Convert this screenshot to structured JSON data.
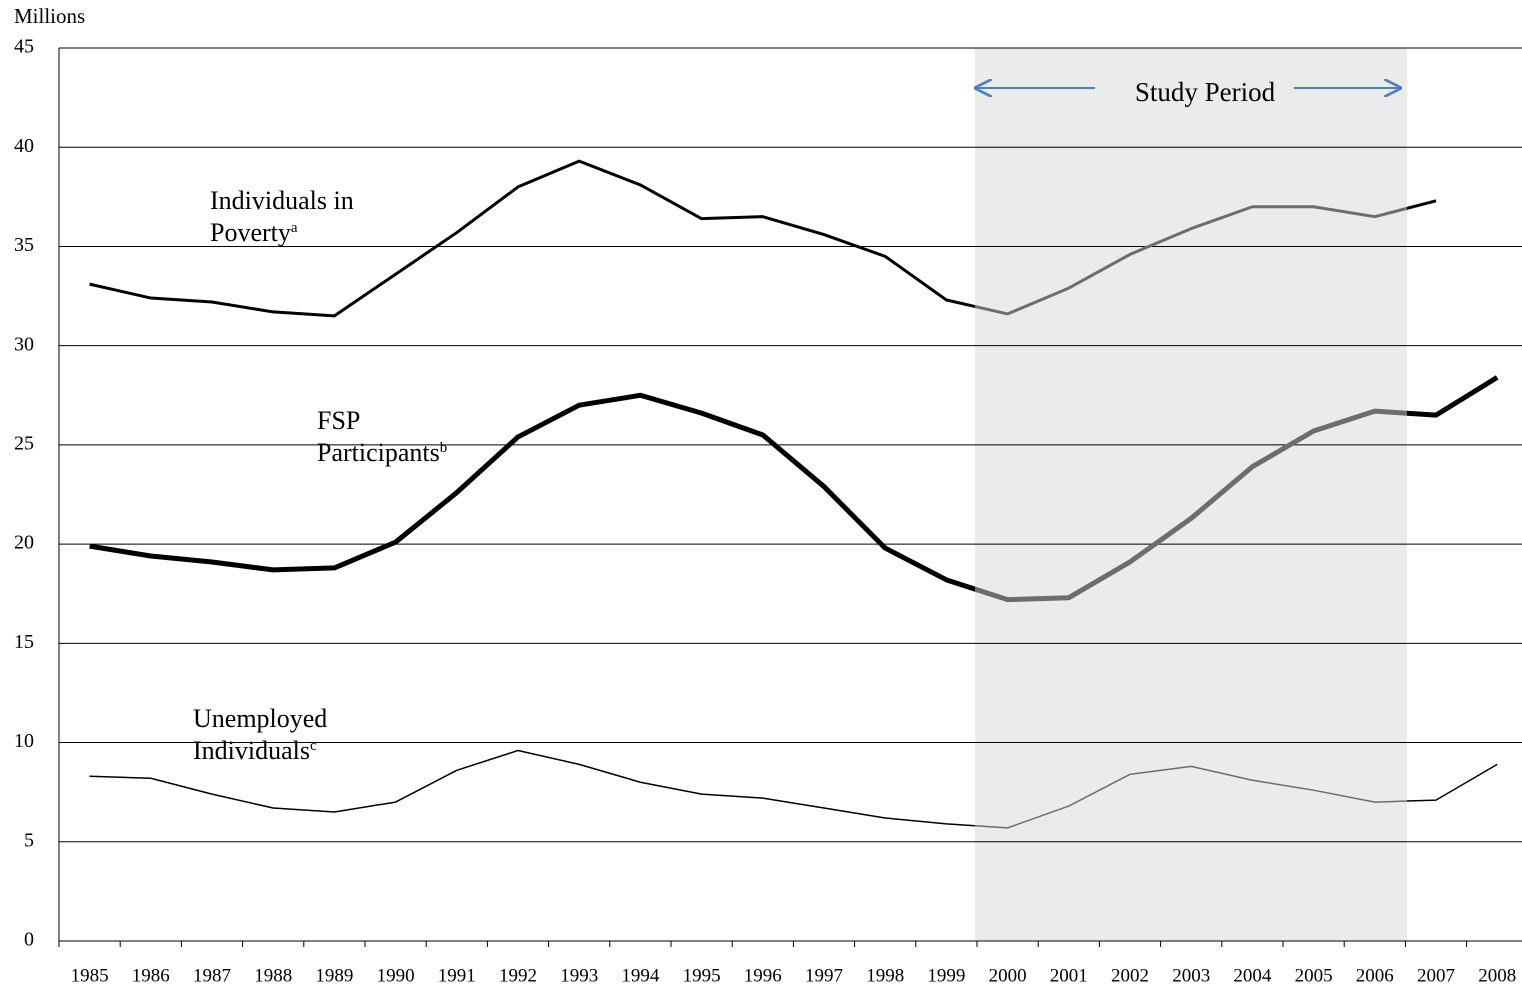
{
  "chart_data": {
    "type": "line",
    "y_axis_label": "Millions",
    "annotation": "Study Period",
    "categories": [
      "1985",
      "1986",
      "1987",
      "1988",
      "1989",
      "1990",
      "1991",
      "1992",
      "1993",
      "1994",
      "1995",
      "1996",
      "1997",
      "1998",
      "1999",
      "2000",
      "2001",
      "2002",
      "2003",
      "2004",
      "2005",
      "2006",
      "2007",
      "2008"
    ],
    "series": [
      {
        "name": "Individuals in Poverty",
        "note": "a",
        "color": "#000000",
        "width": 3,
        "values": [
          33.1,
          32.4,
          32.2,
          31.7,
          31.5,
          33.6,
          35.7,
          38.0,
          39.3,
          38.1,
          36.4,
          36.5,
          35.6,
          34.5,
          32.3,
          31.6,
          32.9,
          34.6,
          35.9,
          37.0,
          37.0,
          36.5,
          37.3,
          null
        ]
      },
      {
        "name": "FSP Participants",
        "note": "b",
        "color": "#000000",
        "width": 5,
        "values": [
          19.9,
          19.4,
          19.1,
          18.7,
          18.8,
          20.1,
          22.6,
          25.4,
          27.0,
          27.5,
          26.6,
          25.5,
          22.9,
          19.8,
          18.2,
          17.2,
          17.3,
          19.1,
          21.3,
          23.9,
          25.7,
          26.7,
          26.5,
          28.4
        ]
      },
      {
        "name": "Unemployed Individuals",
        "note": "c",
        "color": "#000000",
        "width": 1.5,
        "values": [
          8.3,
          8.2,
          7.4,
          6.7,
          6.5,
          7.0,
          8.6,
          9.6,
          8.9,
          8.0,
          7.4,
          7.2,
          6.7,
          6.2,
          5.9,
          5.7,
          6.8,
          8.4,
          8.8,
          8.1,
          7.6,
          7.0,
          7.1,
          8.9
        ]
      }
    ],
    "study_period_color": "#6d6d6d",
    "shade_color": "#ebebeb",
    "ylim": [
      0,
      45
    ],
    "yticks": [
      0,
      5,
      10,
      15,
      20,
      25,
      30,
      35,
      40,
      45
    ],
    "grid": true
  }
}
